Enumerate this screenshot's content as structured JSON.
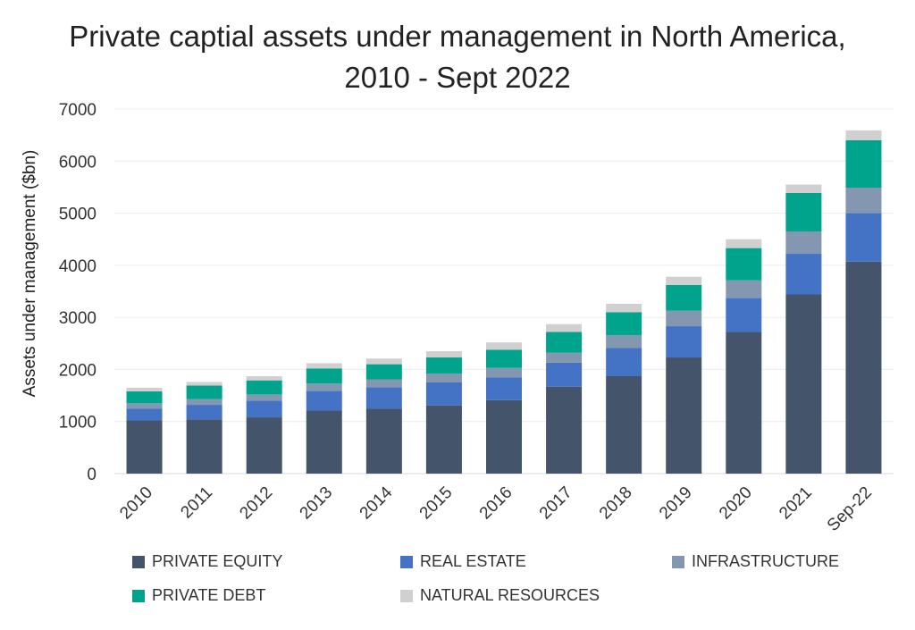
{
  "chart_data": {
    "type": "bar",
    "stacked": true,
    "title": "Private captial assets under management in North America,",
    "subtitle": "2010 - Sept 2022",
    "ylabel": "Assets under management ($bn)",
    "xlabel": "",
    "ylim": [
      0,
      7000
    ],
    "yticks": [
      0,
      1000,
      2000,
      3000,
      4000,
      5000,
      6000,
      7000
    ],
    "grid": true,
    "legend_position": "bottom",
    "categories": [
      "2010",
      "2011",
      "2012",
      "2013",
      "2014",
      "2015",
      "2016",
      "2017",
      "2018",
      "2019",
      "2020",
      "2021",
      "Sep-22"
    ],
    "series": [
      {
        "name": "PRIVATE EQUITY",
        "color": "#44546a",
        "values": [
          1020,
          1040,
          1080,
          1210,
          1250,
          1310,
          1410,
          1670,
          1870,
          2230,
          2720,
          3440,
          4070
        ]
      },
      {
        "name": "REAL ESTATE",
        "color": "#4472c4",
        "values": [
          230,
          280,
          320,
          380,
          410,
          440,
          440,
          460,
          540,
          600,
          650,
          780,
          930
        ]
      },
      {
        "name": "INFRASTRUCTURE",
        "color": "#8497b0",
        "values": [
          100,
          110,
          120,
          140,
          150,
          170,
          180,
          190,
          250,
          300,
          340,
          430,
          490
        ]
      },
      {
        "name": "PRIVATE DEBT",
        "color": "#00a38c",
        "values": [
          230,
          260,
          270,
          290,
          290,
          310,
          350,
          400,
          440,
          490,
          620,
          740,
          910
        ]
      },
      {
        "name": "NATURAL RESOURCES",
        "color": "#d0d0d0",
        "values": [
          70,
          70,
          80,
          100,
          110,
          120,
          140,
          150,
          160,
          160,
          170,
          160,
          190
        ]
      }
    ]
  }
}
